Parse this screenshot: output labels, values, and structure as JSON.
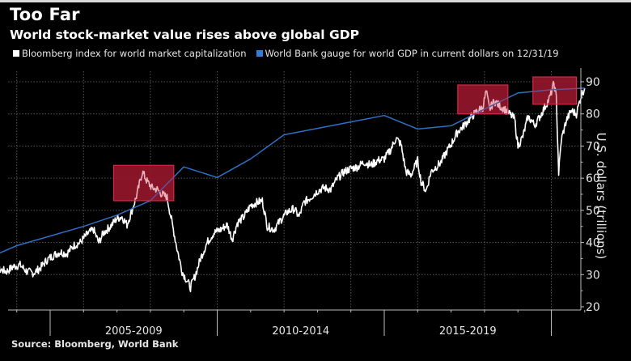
{
  "chart_data": {
    "type": "line",
    "title": "Too Far",
    "subtitle": "World stock-market value rises above global GDP",
    "xlabel": "",
    "ylabel": "U.S. dollars (trillions)",
    "ylim": [
      20,
      92
    ],
    "xlim": [
      2003.0,
      2021.2
    ],
    "yticks": [
      20,
      30,
      40,
      50,
      60,
      70,
      80,
      90
    ],
    "x_period_labels": [
      {
        "label": "2005-2009",
        "center": 2007.5
      },
      {
        "label": "2010-2014",
        "center": 2012.5
      },
      {
        "label": "2015-2019",
        "center": 2017.5
      }
    ],
    "x_major_ticks": [
      2005,
      2010,
      2015,
      2020
    ],
    "x_minor_ticks": [
      2004,
      2006,
      2007,
      2008,
      2009,
      2011,
      2012,
      2013,
      2014,
      2016,
      2017,
      2018,
      2019,
      2021
    ],
    "x_gridlines": [
      2004,
      2006,
      2008,
      2010,
      2012,
      2014,
      2016,
      2018,
      2020
    ],
    "grid": true,
    "legend_position": "top-left",
    "series": [
      {
        "name": "Bloomberg index for world market capitalization",
        "color": "#ffffff",
        "x": [
          2003.0,
          2003.15,
          2003.3,
          2003.5,
          2003.7,
          2003.9,
          2004.1,
          2004.3,
          2004.5,
          2004.7,
          2004.9,
          2005.1,
          2005.3,
          2005.5,
          2005.7,
          2005.9,
          2006.1,
          2006.3,
          2006.45,
          2006.6,
          2006.8,
          2007.0,
          2007.15,
          2007.3,
          2007.45,
          2007.6,
          2007.76,
          2007.9,
          2008.05,
          2008.2,
          2008.35,
          2008.5,
          2008.65,
          2008.8,
          2008.95,
          2009.1,
          2009.2,
          2009.35,
          2009.5,
          2009.7,
          2009.9,
          2010.1,
          2010.3,
          2010.45,
          2010.6,
          2010.8,
          2011.0,
          2011.2,
          2011.35,
          2011.5,
          2011.7,
          2011.9,
          2012.1,
          2012.3,
          2012.45,
          2012.6,
          2012.8,
          2013.0,
          2013.2,
          2013.4,
          2013.6,
          2013.8,
          2014.0,
          2014.2,
          2014.4,
          2014.6,
          2014.8,
          2015.0,
          2015.2,
          2015.35,
          2015.5,
          2015.65,
          2015.8,
          2016.0,
          2016.1,
          2016.25,
          2016.4,
          2016.55,
          2016.7,
          2016.85,
          2017.0,
          2017.2,
          2017.4,
          2017.6,
          2017.8,
          2017.95,
          2018.05,
          2018.15,
          2018.3,
          2018.45,
          2018.6,
          2018.75,
          2018.9,
          2019.0,
          2019.15,
          2019.3,
          2019.4,
          2019.5,
          2019.65,
          2019.8,
          2019.95,
          2020.08,
          2020.15,
          2020.22,
          2020.3,
          2020.45,
          2020.6,
          2020.75,
          2020.9,
          2021.0
        ],
        "values": [
          26,
          28.5,
          30.5,
          31.5,
          31,
          32.5,
          33,
          31,
          30.5,
          32,
          34.5,
          36,
          37,
          36.5,
          39,
          40,
          42.5,
          44,
          40,
          43,
          45,
          47.5,
          48,
          45.5,
          50,
          55,
          62,
          59,
          57,
          56.5,
          55,
          54,
          46,
          38,
          31,
          28,
          26,
          30,
          35,
          40,
          43,
          44,
          45.5,
          41,
          46,
          48,
          51.5,
          52.5,
          53,
          45,
          44,
          47,
          49.5,
          50.5,
          48,
          52.5,
          54,
          56,
          57,
          56.5,
          60,
          62,
          63,
          63.5,
          65,
          64,
          65.5,
          66,
          69,
          72.5,
          70.5,
          62,
          61,
          65.5,
          59,
          56,
          62,
          63.5,
          65,
          68,
          70.5,
          74.5,
          76.5,
          79,
          81,
          82,
          87,
          81.5,
          84,
          82.5,
          81.5,
          80,
          78.5,
          70,
          73,
          79,
          78,
          76.5,
          79,
          82,
          85,
          89.5,
          85,
          61.5,
          72,
          78,
          81,
          80,
          86,
          88
        ]
      },
      {
        "name": "World Bank gauge for world GDP in current dollars on 12/31/19",
        "color": "#2f6fc4",
        "x": [
          2003.0,
          2004.0,
          2005.0,
          2006.0,
          2007.0,
          2008.0,
          2009.0,
          2010.0,
          2011.0,
          2012.0,
          2013.0,
          2014.0,
          2015.0,
          2016.0,
          2017.0,
          2018.0,
          2019.0,
          2020.0,
          2021.0
        ],
        "values": [
          34.5,
          39,
          42,
          45,
          48.5,
          53,
          63.5,
          60.2,
          66,
          73.5,
          75.5,
          77.5,
          79.5,
          75.3,
          76.3,
          81.5,
          86.5,
          87.5,
          88
        ]
      }
    ],
    "annotations": [
      {
        "type": "highlight-box",
        "x_range": [
          2006.9,
          2008.7
        ],
        "y_range": [
          53,
          64
        ],
        "color": "#b01c35"
      },
      {
        "type": "highlight-box",
        "x_range": [
          2017.2,
          2018.7
        ],
        "y_range": [
          80,
          89
        ],
        "color": "#b01c35"
      },
      {
        "type": "highlight-box",
        "x_range": [
          2019.45,
          2020.75
        ],
        "y_range": [
          83,
          91.5
        ],
        "color": "#b01c35"
      }
    ],
    "source": "Source: Bloomberg, World Bank"
  }
}
